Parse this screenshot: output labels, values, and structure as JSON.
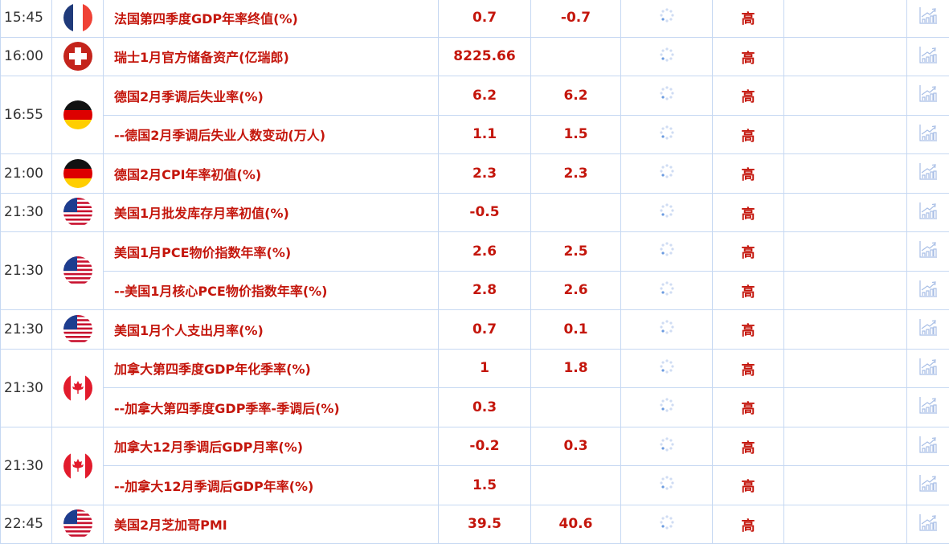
{
  "colors": {
    "text": "#c4160c",
    "border": "#c6d8f2",
    "icon": "#a9bfe6"
  },
  "groups": [
    {
      "time": "15:45",
      "flag": "france",
      "rows": [
        {
          "name": "法国第四季度GDP年率终值(%)",
          "actual": "0.7",
          "previous": "-0.7",
          "importance": "高"
        }
      ]
    },
    {
      "time": "16:00",
      "flag": "switzerland",
      "rows": [
        {
          "name": "瑞士1月官方储备资产(亿瑞郎)",
          "actual": "8225.66",
          "previous": "",
          "importance": "高"
        }
      ]
    },
    {
      "time": "16:55",
      "flag": "germany",
      "rows": [
        {
          "name": "德国2月季调后失业率(%)",
          "actual": "6.2",
          "previous": "6.2",
          "importance": "高"
        },
        {
          "name": "--德国2月季调后失业人数变动(万人)",
          "actual": "1.1",
          "previous": "1.5",
          "importance": "高"
        }
      ]
    },
    {
      "time": "21:00",
      "flag": "germany",
      "rows": [
        {
          "name": "德国2月CPI年率初值(%)",
          "actual": "2.3",
          "previous": "2.3",
          "importance": "高"
        }
      ]
    },
    {
      "time": "21:30",
      "flag": "usa",
      "rows": [
        {
          "name": "美国1月批发库存月率初值(%)",
          "actual": "-0.5",
          "previous": "",
          "importance": "高"
        }
      ]
    },
    {
      "time": "21:30",
      "flag": "usa",
      "rows": [
        {
          "name": "美国1月PCE物价指数年率(%)",
          "actual": "2.6",
          "previous": "2.5",
          "importance": "高"
        },
        {
          "name": "--美国1月核心PCE物价指数年率(%)",
          "actual": "2.8",
          "previous": "2.6",
          "importance": "高"
        }
      ]
    },
    {
      "time": "21:30",
      "flag": "usa",
      "rows": [
        {
          "name": "美国1月个人支出月率(%)",
          "actual": "0.7",
          "previous": "0.1",
          "importance": "高"
        }
      ]
    },
    {
      "time": "21:30",
      "flag": "canada",
      "rows": [
        {
          "name": "加拿大第四季度GDP年化季率(%)",
          "actual": "1",
          "previous": "1.8",
          "importance": "高"
        },
        {
          "name": "--加拿大第四季度GDP季率-季调后(%)",
          "actual": "0.3",
          "previous": "",
          "importance": "高"
        }
      ]
    },
    {
      "time": "21:30",
      "flag": "canada",
      "rows": [
        {
          "name": "加拿大12月季调后GDP月率(%)",
          "actual": "-0.2",
          "previous": "0.3",
          "importance": "高"
        },
        {
          "name": "--加拿大12月季调后GDP年率(%)",
          "actual": "1.5",
          "previous": "",
          "importance": "高"
        }
      ]
    },
    {
      "time": "22:45",
      "flag": "usa",
      "rows": [
        {
          "name": "美国2月芝加哥PMI",
          "actual": "39.5",
          "previous": "40.6",
          "importance": "高"
        }
      ]
    }
  ]
}
